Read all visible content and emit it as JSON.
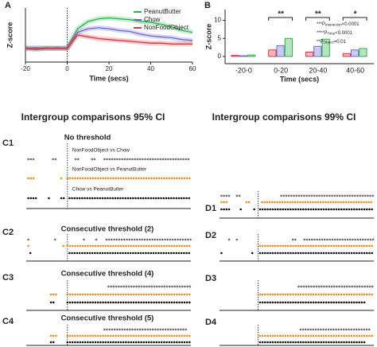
{
  "chart_data": [
    {
      "type": "line",
      "panel": "A",
      "xlabel": "Time (secs)",
      "ylabel": "Z-score",
      "x": [
        -20,
        -15,
        -10,
        -5,
        0,
        5,
        10,
        15,
        20,
        25,
        30,
        35,
        40,
        45,
        50,
        55,
        60
      ],
      "xlim": [
        -20,
        60
      ],
      "xticks": [
        -20,
        0,
        20,
        40,
        60
      ],
      "ylim": [
        -1.5,
        4.5
      ],
      "legend": "top-right",
      "series": [
        {
          "name": "PeanutButter",
          "color": "#2bb34a",
          "values": [
            0.1,
            0.0,
            0.1,
            0.0,
            0.1,
            2.2,
            3.0,
            3.3,
            3.4,
            3.3,
            3.2,
            3.0,
            2.9,
            2.7,
            2.4,
            2.0,
            1.8
          ]
        },
        {
          "name": "Chow",
          "color": "#6a6ad8",
          "values": [
            0.0,
            0.1,
            0.0,
            0.1,
            0.0,
            1.8,
            2.2,
            2.3,
            2.2,
            2.0,
            1.9,
            1.6,
            1.4,
            1.3,
            1.2,
            1.0,
            0.9
          ]
        },
        {
          "name": "NonFoodObject",
          "color": "#e0323c",
          "values": [
            0.0,
            -0.1,
            0.0,
            0.0,
            0.0,
            1.5,
            1.3,
            1.1,
            1.0,
            0.9,
            0.8,
            0.7,
            0.6,
            0.6,
            0.5,
            0.5,
            0.5
          ]
        }
      ]
    },
    {
      "type": "bar",
      "panel": "B",
      "xlabel": "Time (secs)",
      "ylabel": "Z-score",
      "categories": [
        "-20-0",
        "0-20",
        "20-40",
        "40-60"
      ],
      "ylim": [
        -2,
        13
      ],
      "yticks": [
        0,
        5,
        10
      ],
      "significance": [
        null,
        "**",
        "**",
        "*"
      ],
      "series": [
        {
          "color": "#e0323c",
          "values": [
            0.3,
            1.8,
            1.2,
            0.8
          ]
        },
        {
          "color": "#6a6ad8",
          "values": [
            0.2,
            3.0,
            2.8,
            1.8
          ]
        },
        {
          "color": "#2bb34a",
          "values": [
            0.4,
            5.0,
            4.8,
            2.2
          ]
        }
      ],
      "annotations": [
        {
          "prefix": "***P",
          "sub": "interaction",
          "suffix": "<0.0001"
        },
        {
          "prefix": "****P",
          "sub": "Time",
          "suffix": "<0.0001"
        },
        {
          "prefix": "**P",
          "sub": "Object",
          "suffix": "=0.01"
        }
      ]
    },
    {
      "type": "raster",
      "panel": "C1",
      "title": "No threshold",
      "xlim": [
        -20,
        60
      ],
      "rows": [
        {
          "name": "NonFoodObject vs Chow",
          "color": "#6d6d6d",
          "segments": [
            [
              -19,
              -16
            ],
            [
              -7,
              -5
            ],
            [
              4,
              6
            ],
            [
              12,
              14
            ],
            [
              18,
              60
            ]
          ]
        },
        {
          "name": "NonFoodObject vs PeanutButter",
          "color": "#f08c1e",
          "segments": [
            [
              -19,
              -16
            ],
            [
              -3,
              -2
            ],
            [
              0,
              60
            ]
          ]
        },
        {
          "name": "Chow vs PeanutButter",
          "color": "#111111",
          "segments": [
            [
              -19,
              -15
            ],
            [
              -9,
              -8
            ],
            [
              -3,
              -1
            ],
            [
              1,
              60
            ]
          ]
        }
      ]
    },
    {
      "type": "raster",
      "panel": "C2",
      "title": "Consecutive threshold (2)",
      "xlim": [
        -20,
        60
      ],
      "rows": [
        {
          "color": "#6d6d6d",
          "segments": [
            [
              -19,
              -18
            ],
            [
              -6,
              -5
            ],
            [
              8,
              9
            ],
            [
              14,
              15
            ],
            [
              19,
              60
            ]
          ]
        },
        {
          "color": "#f08c1e",
          "segments": [
            [
              -19,
              -18
            ],
            [
              -2,
              -1
            ],
            [
              0,
              60
            ]
          ]
        },
        {
          "color": "#111111",
          "segments": [
            [
              -18,
              -17
            ],
            [
              1,
              60
            ]
          ]
        }
      ]
    },
    {
      "type": "raster",
      "panel": "C3",
      "title": "Consecutive threshold (4)",
      "xlim": [
        -20,
        60
      ],
      "rows": [
        {
          "color": "#6d6d6d",
          "segments": [
            [
              20,
              60
            ]
          ]
        },
        {
          "color": "#f08c1e",
          "segments": [
            [
              -8,
              -5
            ],
            [
              0,
              60
            ]
          ]
        },
        {
          "color": "#111111",
          "segments": [
            [
              -8,
              -6
            ],
            [
              0,
              60
            ]
          ]
        }
      ]
    },
    {
      "type": "raster",
      "panel": "C4",
      "title": "Consecutive threshold (5)",
      "xlim": [
        -20,
        60
      ],
      "rows": [
        {
          "color": "#6d6d6d",
          "segments": [
            [
              18,
              58
            ]
          ]
        },
        {
          "color": "#f08c1e",
          "segments": [
            [
              -8,
              -5
            ],
            [
              0,
              60
            ]
          ]
        },
        {
          "color": "#111111",
          "segments": [
            [
              -8,
              -6
            ],
            [
              0,
              60
            ]
          ]
        }
      ]
    },
    {
      "type": "raster",
      "panel": "D1",
      "xlim": [
        -20,
        60
      ],
      "rows": [
        {
          "color": "#6d6d6d",
          "segments": [
            [
              -19,
              -14
            ],
            [
              -11,
              -9
            ],
            [
              12,
              60
            ]
          ]
        },
        {
          "color": "#f08c1e",
          "segments": [
            [
              -19,
              -16
            ],
            [
              -6,
              -4
            ],
            [
              2,
              60
            ]
          ]
        },
        {
          "color": "#111111",
          "segments": [
            [
              -19,
              -15
            ],
            [
              -9,
              -8
            ],
            [
              -2,
              -1
            ],
            [
              1,
              60
            ]
          ]
        }
      ]
    },
    {
      "type": "raster",
      "panel": "D2",
      "xlim": [
        -20,
        60
      ],
      "rows": [
        {
          "color": "#6d6d6d",
          "segments": [
            [
              -15,
              -14
            ],
            [
              -11,
              -10
            ],
            [
              18,
              20
            ],
            [
              24,
              60
            ]
          ]
        },
        {
          "color": "#f08c1e",
          "segments": [
            [
              1,
              60
            ]
          ]
        },
        {
          "color": "#111111",
          "segments": [
            [
              -19,
              -18
            ],
            [
              -3,
              -2
            ],
            [
              1,
              60
            ]
          ]
        }
      ]
    },
    {
      "type": "raster",
      "panel": "D3",
      "xlim": [
        -20,
        60
      ],
      "rows": [
        {
          "color": "#6d6d6d",
          "segments": [
            [
              21,
              60
            ]
          ]
        },
        {
          "color": "#f08c1e",
          "segments": [
            [
              1,
              60
            ]
          ]
        },
        {
          "color": "#111111",
          "segments": [
            [
              1,
              56
            ]
          ]
        }
      ]
    },
    {
      "type": "raster",
      "panel": "D4",
      "xlim": [
        -20,
        60
      ],
      "rows": [
        {
          "color": "#6d6d6d",
          "segments": [
            [
              22,
              58
            ]
          ]
        },
        {
          "color": "#f08c1e",
          "segments": [
            [
              1,
              60
            ]
          ]
        },
        {
          "color": "#111111",
          "segments": [
            [
              1,
              56
            ]
          ]
        }
      ]
    }
  ],
  "headings": [
    "Intergroup comparisons 95% CI",
    "Intergroup comparisons 99% CI"
  ]
}
